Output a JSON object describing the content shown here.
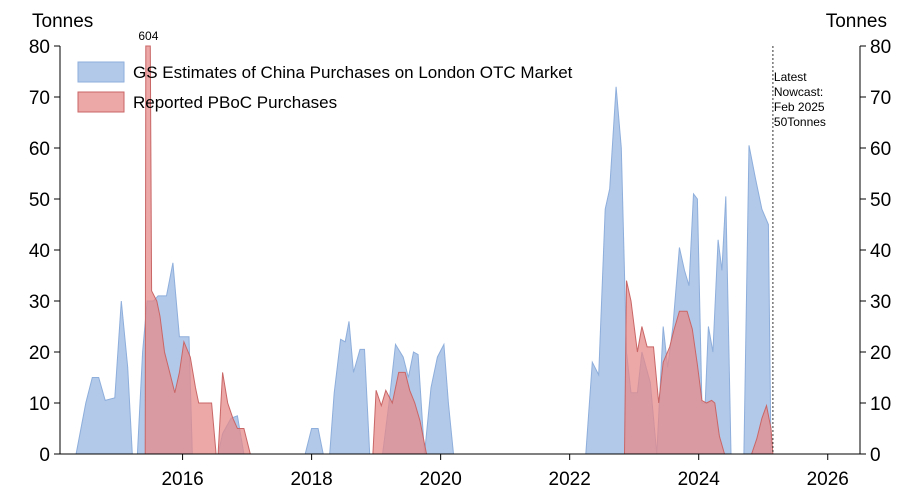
{
  "chart_data": {
    "type": "area",
    "y_unit_left": "Tonnes",
    "y_unit_right": "Tonnes",
    "ylim": [
      0,
      80
    ],
    "yticks": [
      "0",
      "10",
      "20",
      "30",
      "40",
      "50",
      "60",
      "70",
      "80"
    ],
    "xlim": [
      2014.1,
      2026.5
    ],
    "xticks": [
      "2016",
      "2018",
      "2020",
      "2022",
      "2024",
      "2026"
    ],
    "grid": false,
    "legend_position": "top-left",
    "series": [
      {
        "name": "GS Estimates of China Purchases on London OTC Market",
        "color": "#aec6e8",
        "stroke": "#8eaedb",
        "points": [
          [
            2014.35,
            0
          ],
          [
            2014.5,
            10
          ],
          [
            2014.6,
            15
          ],
          [
            2014.7,
            15
          ],
          [
            2014.8,
            10.5
          ],
          [
            2014.95,
            11
          ],
          [
            2015.05,
            30
          ],
          [
            2015.15,
            17
          ],
          [
            2015.22,
            0
          ],
          [
            2015.3,
            0
          ],
          [
            2015.38,
            20
          ],
          [
            2015.45,
            30
          ],
          [
            2015.55,
            30
          ],
          [
            2015.62,
            31
          ],
          [
            2015.75,
            31
          ],
          [
            2015.85,
            37.5
          ],
          [
            2015.95,
            23
          ],
          [
            2016.1,
            23
          ],
          [
            2016.15,
            0
          ],
          [
            2016.3,
            0
          ],
          [
            2016.55,
            0
          ],
          [
            2016.62,
            4
          ],
          [
            2016.75,
            7
          ],
          [
            2016.85,
            7.5
          ],
          [
            2016.95,
            0
          ],
          [
            2017.9,
            0
          ],
          [
            2018.0,
            5
          ],
          [
            2018.1,
            5
          ],
          [
            2018.18,
            0
          ],
          [
            2018.28,
            0
          ],
          [
            2018.35,
            12
          ],
          [
            2018.45,
            22.5
          ],
          [
            2018.52,
            22
          ],
          [
            2018.58,
            26
          ],
          [
            2018.65,
            16
          ],
          [
            2018.75,
            20.5
          ],
          [
            2018.82,
            20.5
          ],
          [
            2018.9,
            0
          ],
          [
            2019.1,
            0
          ],
          [
            2019.2,
            10
          ],
          [
            2019.3,
            21.5
          ],
          [
            2019.42,
            19
          ],
          [
            2019.5,
            15
          ],
          [
            2019.58,
            20
          ],
          [
            2019.65,
            19.5
          ],
          [
            2019.75,
            0
          ],
          [
            2019.85,
            13
          ],
          [
            2019.95,
            19
          ],
          [
            2020.05,
            21.5
          ],
          [
            2020.12,
            10
          ],
          [
            2020.2,
            0
          ],
          [
            2022.25,
            0
          ],
          [
            2022.35,
            18
          ],
          [
            2022.45,
            15.5
          ],
          [
            2022.55,
            48
          ],
          [
            2022.62,
            52
          ],
          [
            2022.72,
            72
          ],
          [
            2022.8,
            60
          ],
          [
            2022.88,
            20
          ],
          [
            2022.95,
            12
          ],
          [
            2023.05,
            12
          ],
          [
            2023.12,
            20
          ],
          [
            2023.25,
            14
          ],
          [
            2023.35,
            0
          ],
          [
            2023.45,
            25
          ],
          [
            2023.52,
            17
          ],
          [
            2023.6,
            25
          ],
          [
            2023.7,
            40.5
          ],
          [
            2023.78,
            36
          ],
          [
            2023.85,
            33
          ],
          [
            2023.92,
            51
          ],
          [
            2023.98,
            50
          ],
          [
            2024.05,
            10
          ],
          [
            2024.1,
            10
          ],
          [
            2024.15,
            25
          ],
          [
            2024.22,
            20
          ],
          [
            2024.3,
            42
          ],
          [
            2024.36,
            36
          ],
          [
            2024.42,
            50.5
          ],
          [
            2024.5,
            0
          ],
          [
            2024.7,
            0
          ],
          [
            2024.78,
            60.5
          ],
          [
            2024.88,
            54
          ],
          [
            2024.98,
            48
          ],
          [
            2025.08,
            45
          ],
          [
            2025.12,
            0
          ]
        ]
      },
      {
        "name": "Reported PBoC Purchases",
        "color": "#e68a8a",
        "stroke": "#c96666",
        "points": [
          [
            2015.42,
            0
          ],
          [
            2015.43,
            80
          ],
          [
            2015.5,
            80
          ],
          [
            2015.52,
            32
          ],
          [
            2015.6,
            30
          ],
          [
            2015.65,
            27
          ],
          [
            2015.72,
            20
          ],
          [
            2015.8,
            16
          ],
          [
            2015.88,
            12
          ],
          [
            2015.95,
            16
          ],
          [
            2016.02,
            22
          ],
          [
            2016.12,
            19
          ],
          [
            2016.2,
            13
          ],
          [
            2016.25,
            10
          ],
          [
            2016.35,
            10
          ],
          [
            2016.45,
            10
          ],
          [
            2016.52,
            0
          ],
          [
            2016.55,
            0
          ],
          [
            2016.62,
            16
          ],
          [
            2016.7,
            10
          ],
          [
            2016.78,
            7
          ],
          [
            2016.85,
            5
          ],
          [
            2016.95,
            5
          ],
          [
            2017.05,
            0
          ],
          [
            2018.95,
            0
          ],
          [
            2019.0,
            12.5
          ],
          [
            2019.08,
            9.5
          ],
          [
            2019.15,
            12.5
          ],
          [
            2019.25,
            10
          ],
          [
            2019.35,
            16
          ],
          [
            2019.45,
            16
          ],
          [
            2019.52,
            12.5
          ],
          [
            2019.6,
            10
          ],
          [
            2019.68,
            6.5
          ],
          [
            2019.78,
            0
          ],
          [
            2022.85,
            0
          ],
          [
            2022.88,
            34
          ],
          [
            2022.95,
            30
          ],
          [
            2023.05,
            20
          ],
          [
            2023.12,
            25
          ],
          [
            2023.2,
            21
          ],
          [
            2023.3,
            21
          ],
          [
            2023.38,
            10
          ],
          [
            2023.45,
            18
          ],
          [
            2023.55,
            21
          ],
          [
            2023.62,
            24.5
          ],
          [
            2023.7,
            28
          ],
          [
            2023.82,
            28
          ],
          [
            2023.9,
            24.5
          ],
          [
            2023.98,
            17.5
          ],
          [
            2024.05,
            10.5
          ],
          [
            2024.12,
            10
          ],
          [
            2024.2,
            10.5
          ],
          [
            2024.25,
            10
          ],
          [
            2024.32,
            3.5
          ],
          [
            2024.4,
            0
          ],
          [
            2024.82,
            0
          ],
          [
            2024.9,
            3
          ],
          [
            2024.98,
            7
          ],
          [
            2025.05,
            9.5
          ],
          [
            2025.12,
            5
          ],
          [
            2025.15,
            0
          ]
        ]
      }
    ],
    "annotations": {
      "spike_label": "604",
      "spike_x": 2015.47,
      "nowcast_x": 2025.15,
      "nowcast_lines": [
        "Latest",
        "Nowcast:",
        "Feb 2025",
        "50Tonnes"
      ]
    }
  }
}
